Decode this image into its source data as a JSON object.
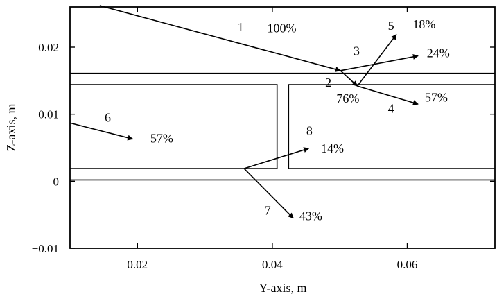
{
  "chart_data": {
    "type": "diagram",
    "xlabel": "Y-axis, m",
    "ylabel": "Z-axis, m",
    "xlim": [
      0.01,
      0.073
    ],
    "ylim": [
      -0.01,
      0.026
    ],
    "xticks": [
      {
        "value": 0.02,
        "label": "0.02"
      },
      {
        "value": 0.04,
        "label": "0.04"
      },
      {
        "value": 0.06,
        "label": "0.06"
      }
    ],
    "yticks": [
      {
        "value": -0.01,
        "label": "−0.01"
      },
      {
        "value": 0,
        "label": "0"
      },
      {
        "value": 0.01,
        "label": "0.01"
      },
      {
        "value": 0.02,
        "label": "0.02"
      }
    ],
    "boundaries": [
      {
        "name": "upper-plate-surface",
        "points": [
          [
            0.01,
            0.0161
          ],
          [
            0.073,
            0.0161
          ]
        ]
      },
      {
        "name": "zero-surface",
        "points": [
          [
            0.01,
            0.0002
          ],
          [
            0.073,
            0.0002
          ]
        ]
      },
      {
        "name": "left-channel-outline",
        "points": [
          [
            0.01,
            0.0144
          ],
          [
            0.0407,
            0.0144
          ],
          [
            0.0407,
            0.0019
          ],
          [
            0.01,
            0.0019
          ]
        ]
      },
      {
        "name": "right-channel-outline",
        "points": [
          [
            0.073,
            0.0144
          ],
          [
            0.0424,
            0.0144
          ],
          [
            0.0424,
            0.0019
          ],
          [
            0.073,
            0.0019
          ]
        ]
      }
    ],
    "rays": [
      {
        "label": "1",
        "percent": "100%",
        "from": [
          0.0144,
          0.0262
        ],
        "to": [
          0.0501,
          0.0165
        ],
        "label_at": [
          0.0353,
          0.0224
        ],
        "percent_at": [
          0.0414,
          0.0222
        ]
      },
      {
        "label": "2",
        "percent": "76%",
        "from": [
          0.0501,
          0.0165
        ],
        "to": [
          0.0526,
          0.0142
        ],
        "label_at": [
          0.0483,
          0.0141
        ],
        "percent_at": [
          0.0512,
          0.0117
        ]
      },
      {
        "label": "3",
        "percent": "24%",
        "from": [
          0.0501,
          0.0165
        ],
        "to": [
          0.0616,
          0.0187
        ],
        "label_at": [
          0.0525,
          0.0188
        ],
        "percent_at": [
          0.0646,
          0.0185
        ]
      },
      {
        "label": "4",
        "percent": "57%",
        "from": [
          0.0526,
          0.0142
        ],
        "to": [
          0.0616,
          0.0115
        ],
        "label_at": [
          0.0576,
          0.0102
        ],
        "percent_at": [
          0.0643,
          0.0119
        ]
      },
      {
        "label": "5",
        "percent": "18%",
        "from": [
          0.0526,
          0.0142
        ],
        "to": [
          0.0584,
          0.0219
        ],
        "label_at": [
          0.0576,
          0.0226
        ],
        "percent_at": [
          0.0625,
          0.0228
        ]
      },
      {
        "label": "6",
        "percent": "57%",
        "from": [
          0.01,
          0.0087
        ],
        "to": [
          0.0193,
          0.0063
        ],
        "label_at": [
          0.0156,
          0.0089
        ],
        "percent_at": [
          0.0236,
          0.0058
        ]
      },
      {
        "label": "7",
        "percent": "43%",
        "from": [
          0.0358,
          0.0019
        ],
        "to": [
          0.0431,
          -0.0055
        ],
        "label_at": [
          0.0393,
          -0.005
        ],
        "percent_at": [
          0.0457,
          -0.0058
        ]
      },
      {
        "label": "8",
        "percent": "14%",
        "from": [
          0.0358,
          0.0019
        ],
        "to": [
          0.0454,
          0.0049
        ],
        "label_at": [
          0.0455,
          0.0069
        ],
        "percent_at": [
          0.0489,
          0.0043
        ]
      }
    ]
  }
}
